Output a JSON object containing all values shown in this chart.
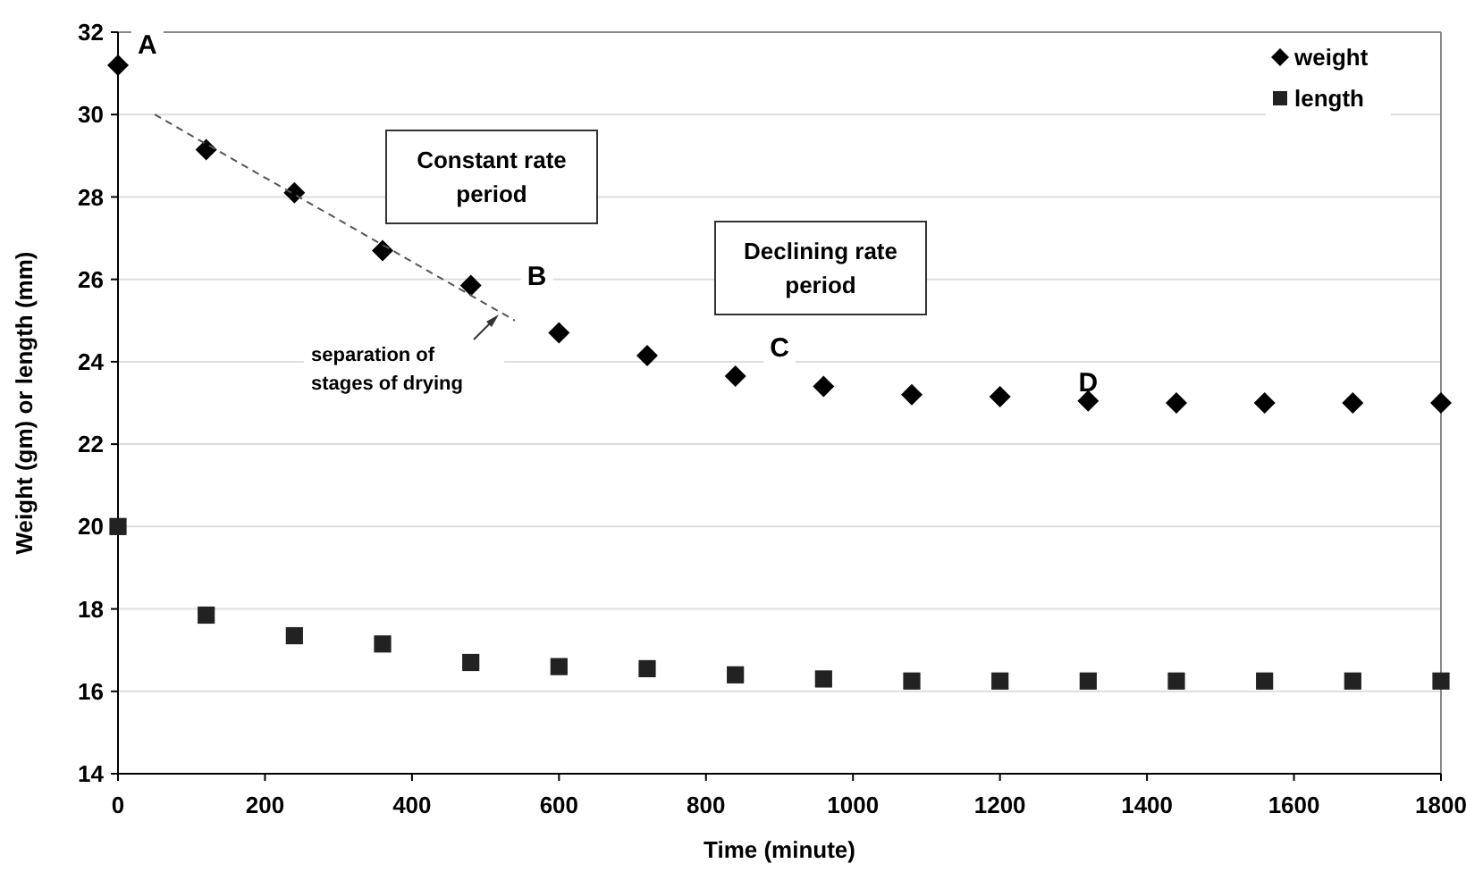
{
  "chart_data": {
    "type": "scatter",
    "xlabel": "Time (minute)",
    "ylabel": "Weight (gm) or length (mm)",
    "xlim": [
      0,
      1800
    ],
    "xticks": [
      0,
      200,
      400,
      600,
      800,
      1000,
      1200,
      1400,
      1600,
      1800
    ],
    "ylim": [
      14,
      32
    ],
    "yticks": [
      14,
      16,
      18,
      20,
      22,
      24,
      26,
      28,
      30,
      32
    ],
    "grid": "y",
    "legend": "top right",
    "series": [
      {
        "name": "weight",
        "color": "#000000",
        "marker": "diamond",
        "x": [
          0,
          120,
          240,
          360,
          480,
          600,
          720,
          840,
          960,
          1080,
          1200,
          1320,
          1440,
          1560,
          1680,
          1800
        ],
        "values": [
          31.2,
          29.15,
          28.1,
          26.7,
          25.85,
          24.7,
          24.15,
          23.65,
          23.4,
          23.2,
          23.15,
          23.05,
          23.0,
          23.0,
          23.0,
          23.0
        ]
      },
      {
        "name": "length",
        "color": "#222222",
        "marker": "square",
        "x": [
          0,
          120,
          240,
          360,
          480,
          600,
          720,
          840,
          960,
          1080,
          1200,
          1320,
          1440,
          1560,
          1680,
          1800
        ],
        "values": [
          20,
          17.85,
          17.35,
          17.15,
          16.7,
          16.6,
          16.55,
          16.4,
          16.3,
          16.25,
          16.25,
          16.25,
          16.25,
          16.25,
          16.25,
          16.25
        ]
      },
      {
        "type": "line",
        "color": "#555555",
        "marker": "none",
        "line_style": "dashed",
        "x": [
          50,
          540
        ],
        "values": [
          30,
          25
        ]
      }
    ],
    "annotations": [
      {
        "text": "A",
        "x": 40,
        "y": 31.7
      },
      {
        "text": "B",
        "x": 570,
        "y": 26.1
      },
      {
        "text": "C",
        "x": 900,
        "y": 24.35
      },
      {
        "text": "D",
        "x": 1320,
        "y": 23.5
      },
      "separation of stages of drying",
      "Constant rate period",
      "Declining rate period"
    ]
  }
}
